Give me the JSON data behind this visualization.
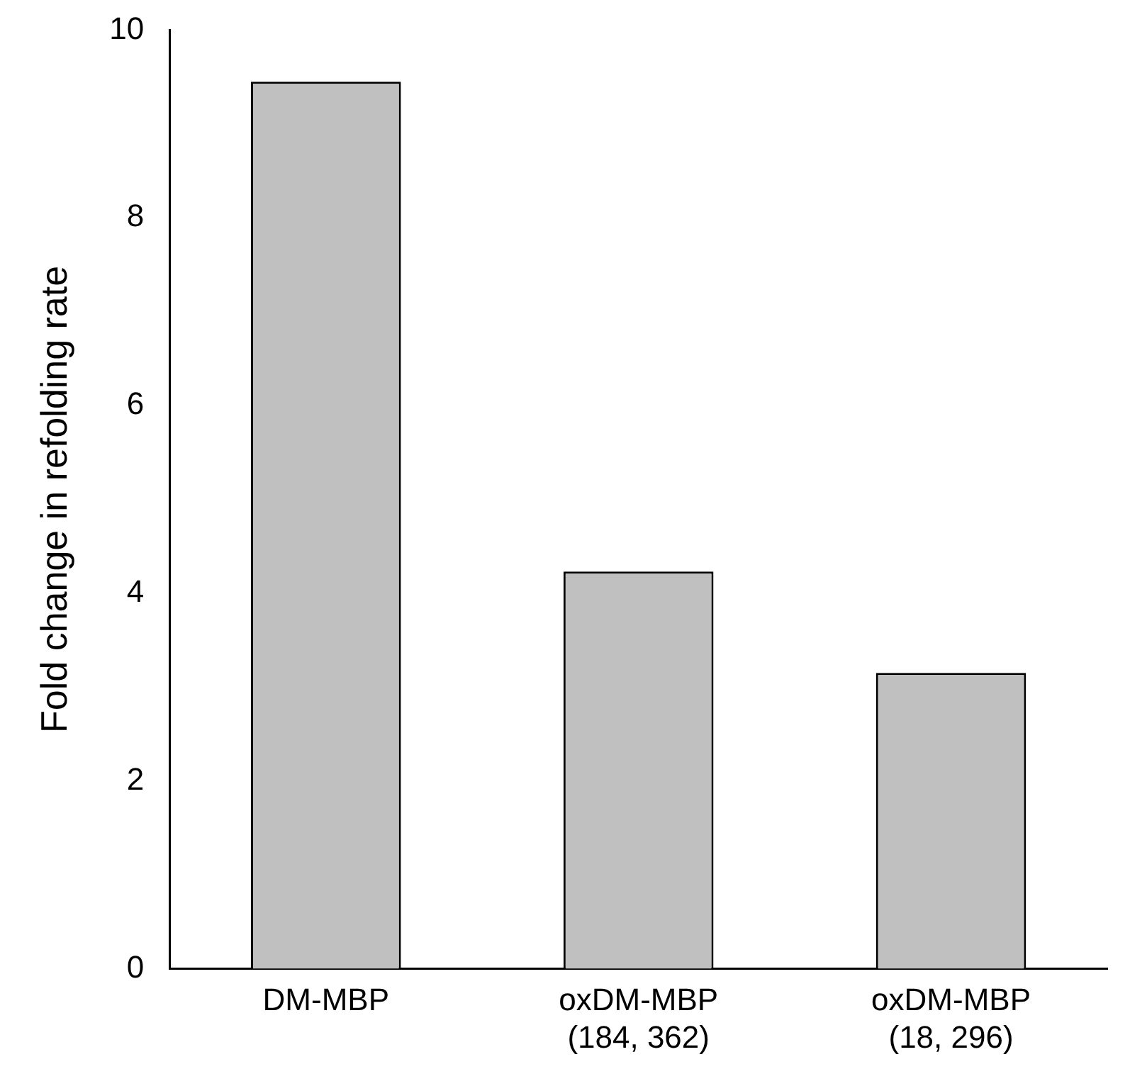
{
  "chart_data": {
    "type": "bar",
    "ylabel": "Fold change in refolding rate",
    "categories": [
      "DM-MBP",
      "oxDM-MBP\n(184, 362)",
      "oxDM-MBP\n(18, 296)"
    ],
    "values": [
      9.45,
      4.23,
      3.15
    ],
    "color": "#c0c0c0",
    "ylim": [
      0,
      10
    ],
    "yticks": [
      0,
      2,
      4,
      6,
      8,
      10
    ],
    "grid": false,
    "legend": false
  }
}
